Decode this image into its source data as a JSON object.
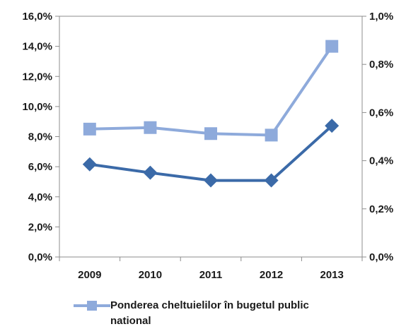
{
  "chart_data": {
    "type": "line",
    "categories": [
      "2009",
      "2010",
      "2011",
      "2012",
      "2013"
    ],
    "left_axis": {
      "ylim": [
        0,
        16
      ],
      "ticks": [
        0,
        2,
        4,
        6,
        8,
        10,
        12,
        14,
        16
      ],
      "tick_labels": [
        "0,0%",
        "2,0%",
        "4,0%",
        "6,0%",
        "8,0%",
        "10,0%",
        "12,0%",
        "14,0%",
        "16,0%"
      ]
    },
    "right_axis": {
      "ylim": [
        0,
        1.0
      ],
      "ticks": [
        0,
        0.2,
        0.4,
        0.6,
        0.8,
        1.0
      ],
      "tick_labels": [
        "0,0%",
        "0,2%",
        "0,4%",
        "0,6%",
        "0,8%",
        "1,0%"
      ]
    },
    "series": [
      {
        "name": "Ponderea cheltuielilor în bugetul public national",
        "axis": "left",
        "marker": "square",
        "color": "#8eaadb",
        "values": [
          8.5,
          8.6,
          8.2,
          8.1,
          14.0
        ]
      },
      {
        "axis": "right",
        "marker": "diamond",
        "color": "#3b6aa8",
        "values": [
          0.385,
          0.35,
          0.318,
          0.318,
          0.545
        ]
      }
    ],
    "legend": {
      "position": "bottom",
      "label_line1": "Ponderea cheltuielilor în bugetul public",
      "label_line2": "national"
    },
    "grid": false
  }
}
